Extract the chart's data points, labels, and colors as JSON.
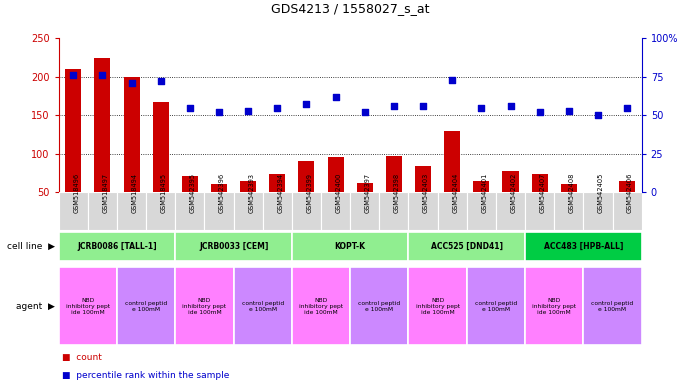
{
  "title": "GDS4213 / 1558027_s_at",
  "gsm_labels": [
    "GSM518496",
    "GSM518497",
    "GSM518494",
    "GSM518495",
    "GSM542395",
    "GSM542396",
    "GSM542393",
    "GSM542394",
    "GSM542399",
    "GSM542400",
    "GSM542397",
    "GSM542398",
    "GSM542403",
    "GSM542404",
    "GSM542401",
    "GSM542402",
    "GSM542407",
    "GSM542408",
    "GSM542405",
    "GSM542406"
  ],
  "bar_values": [
    210,
    225,
    200,
    167,
    71,
    61,
    64,
    73,
    90,
    95,
    62,
    97,
    84,
    129,
    64,
    77,
    74,
    60,
    50,
    64
  ],
  "dot_values": [
    76,
    76,
    71,
    72,
    55,
    52,
    53,
    55,
    57,
    62,
    52,
    56,
    56,
    73,
    55,
    56,
    52,
    53,
    50,
    55
  ],
  "cell_line_groups": [
    {
      "label": "JCRB0086 [TALL-1]",
      "start": 0,
      "end": 3,
      "color": "#90ee90"
    },
    {
      "label": "JCRB0033 [CEM]",
      "start": 4,
      "end": 7,
      "color": "#90ee90"
    },
    {
      "label": "KOPT-K",
      "start": 8,
      "end": 11,
      "color": "#90ee90"
    },
    {
      "label": "ACC525 [DND41]",
      "start": 12,
      "end": 15,
      "color": "#90ee90"
    },
    {
      "label": "ACC483 [HPB-ALL]",
      "start": 16,
      "end": 19,
      "color": "#00cc44"
    }
  ],
  "agent_groups": [
    {
      "label": "NBD\ninhibitory pept\nide 100mM",
      "start": 0,
      "end": 1,
      "color": "#ff80ff"
    },
    {
      "label": "control peptid\ne 100mM",
      "start": 2,
      "end": 3,
      "color": "#cc88ff"
    },
    {
      "label": "NBD\ninhibitory pept\nide 100mM",
      "start": 4,
      "end": 5,
      "color": "#ff80ff"
    },
    {
      "label": "control peptid\ne 100mM",
      "start": 6,
      "end": 7,
      "color": "#cc88ff"
    },
    {
      "label": "NBD\ninhibitory pept\nide 100mM",
      "start": 8,
      "end": 9,
      "color": "#ff80ff"
    },
    {
      "label": "control peptid\ne 100mM",
      "start": 10,
      "end": 11,
      "color": "#cc88ff"
    },
    {
      "label": "NBD\ninhibitory pept\nide 100mM",
      "start": 12,
      "end": 13,
      "color": "#ff80ff"
    },
    {
      "label": "control peptid\ne 100mM",
      "start": 14,
      "end": 15,
      "color": "#cc88ff"
    },
    {
      "label": "NBD\ninhibitory pept\nide 100mM",
      "start": 16,
      "end": 17,
      "color": "#ff80ff"
    },
    {
      "label": "control peptid\ne 100mM",
      "start": 18,
      "end": 19,
      "color": "#cc88ff"
    }
  ],
  "bar_color": "#cc0000",
  "dot_color": "#0000cc",
  "left_ylim": [
    50,
    250
  ],
  "left_yticks": [
    50,
    100,
    150,
    200,
    250
  ],
  "right_ylim": [
    0,
    100
  ],
  "right_yticks": [
    0,
    25,
    50,
    75,
    100
  ],
  "right_yticklabels": [
    "0",
    "25",
    "50",
    "75",
    "100%"
  ],
  "background_color": "#ffffff",
  "plot_bg_color": "#ffffff",
  "tick_bg_color": "#d8d8d8",
  "grid_color": "#000000"
}
